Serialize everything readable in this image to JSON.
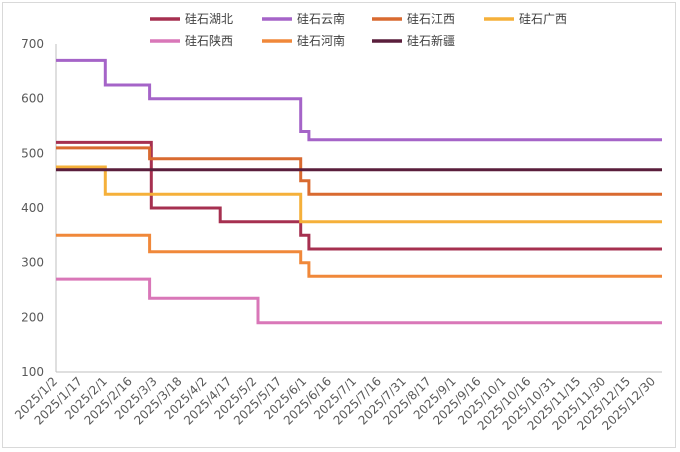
{
  "chart_data": {
    "type": "line",
    "step": true,
    "title": "",
    "xlabel": "",
    "ylabel": "",
    "ylim": [
      100,
      700
    ],
    "yticks": [
      100,
      200,
      300,
      400,
      500,
      600,
      700
    ],
    "grid": false,
    "legend_position": "top",
    "x_tick_labels": [
      "2025/1/2",
      "2025/1/17",
      "2025/2/1",
      "2025/2/16",
      "2025/3/3",
      "2025/3/18",
      "2025/4/2",
      "2025/4/17",
      "2025/5/2",
      "2025/5/17",
      "2025/6/1",
      "2025/6/16",
      "2025/7/1",
      "2025/7/16",
      "2025/7/31",
      "2025/8/17",
      "2025/9/1",
      "2025/9/16",
      "2025/10/1",
      "2025/10/16",
      "2025/10/31",
      "2025/11/15",
      "2025/11/30",
      "2025/12/15",
      "2025/12/30"
    ],
    "x_domain": [
      "2025-01-02",
      "2026-01-06"
    ],
    "series": [
      {
        "name": "硅石湖北",
        "color": "#a63050",
        "points": [
          [
            "2025-01-02",
            520
          ],
          [
            "2025-03-01",
            520
          ],
          [
            "2025-03-01",
            400
          ],
          [
            "2025-04-12",
            400
          ],
          [
            "2025-04-12",
            375
          ],
          [
            "2025-05-31",
            375
          ],
          [
            "2025-05-31",
            350
          ],
          [
            "2025-06-05",
            350
          ],
          [
            "2025-06-05",
            325
          ],
          [
            "2026-01-06",
            325
          ]
        ]
      },
      {
        "name": "硅石云南",
        "color": "#a564c8",
        "points": [
          [
            "2025-01-02",
            670
          ],
          [
            "2025-02-01",
            670
          ],
          [
            "2025-02-01",
            625
          ],
          [
            "2025-02-28",
            625
          ],
          [
            "2025-02-28",
            600
          ],
          [
            "2025-05-31",
            600
          ],
          [
            "2025-05-31",
            540
          ],
          [
            "2025-06-05",
            540
          ],
          [
            "2025-06-05",
            525
          ],
          [
            "2026-01-06",
            525
          ]
        ]
      },
      {
        "name": "硅石江西",
        "color": "#d96a30",
        "points": [
          [
            "2025-01-02",
            510
          ],
          [
            "2025-02-28",
            510
          ],
          [
            "2025-02-28",
            490
          ],
          [
            "2025-05-31",
            490
          ],
          [
            "2025-05-31",
            450
          ],
          [
            "2025-06-05",
            450
          ],
          [
            "2025-06-05",
            425
          ],
          [
            "2026-01-06",
            425
          ]
        ]
      },
      {
        "name": "硅石广西",
        "color": "#f5b03a",
        "points": [
          [
            "2025-01-02",
            475
          ],
          [
            "2025-02-01",
            475
          ],
          [
            "2025-02-01",
            425
          ],
          [
            "2025-05-31",
            425
          ],
          [
            "2025-05-31",
            375
          ],
          [
            "2026-01-06",
            375
          ]
        ]
      },
      {
        "name": "硅石陕西",
        "color": "#d977b8",
        "points": [
          [
            "2025-01-02",
            270
          ],
          [
            "2025-02-28",
            270
          ],
          [
            "2025-02-28",
            235
          ],
          [
            "2025-05-05",
            235
          ],
          [
            "2025-05-05",
            190
          ],
          [
            "2026-01-06",
            190
          ]
        ]
      },
      {
        "name": "硅石河南",
        "color": "#f0883a",
        "points": [
          [
            "2025-01-02",
            350
          ],
          [
            "2025-02-28",
            350
          ],
          [
            "2025-02-28",
            320
          ],
          [
            "2025-05-31",
            320
          ],
          [
            "2025-05-31",
            300
          ],
          [
            "2025-06-05",
            300
          ],
          [
            "2025-06-05",
            275
          ],
          [
            "2026-01-06",
            275
          ]
        ]
      },
      {
        "name": "硅石新疆",
        "color": "#5a1e3c",
        "points": [
          [
            "2025-01-02",
            470
          ],
          [
            "2026-01-06",
            470
          ]
        ]
      }
    ]
  }
}
